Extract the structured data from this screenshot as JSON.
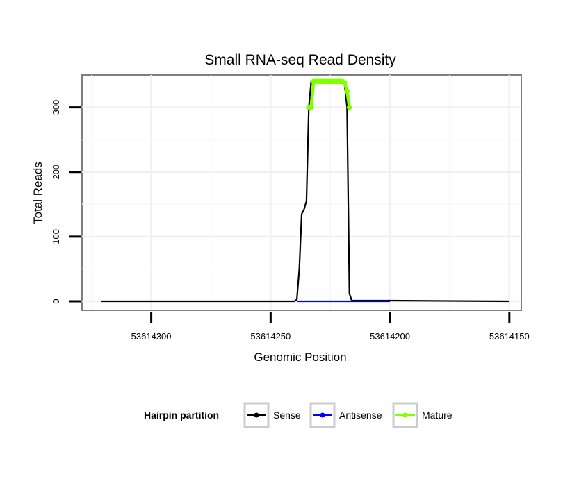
{
  "chart_data": {
    "type": "line",
    "title": "Small RNA-seq Read Density",
    "xlabel": "Genomic Position",
    "ylabel": "Total Reads",
    "xlim": [
      53614329,
      53614145
    ],
    "ylim": [
      -14,
      350
    ],
    "x_reversed": true,
    "x_ticks": [
      53614300,
      53614250,
      53614200,
      53614150
    ],
    "x_tick_labels": [
      "53614300",
      "53614250",
      "53614200",
      "53614150"
    ],
    "y_ticks": [
      0,
      100,
      200,
      300
    ],
    "y_tick_labels": [
      "0",
      "100",
      "200",
      "300"
    ],
    "grid": true,
    "legend": {
      "title": "Hairpin partition",
      "position": "bottom",
      "entries": [
        {
          "name": "Sense",
          "color": "#000000"
        },
        {
          "name": "Antisense",
          "color": "#0000ff"
        },
        {
          "name": "Mature",
          "color": "#7fff00"
        }
      ]
    },
    "series": [
      {
        "name": "Sense",
        "color": "#000000",
        "x": [
          53614321,
          53614240,
          53614239,
          53614238,
          53614237,
          53614236,
          53614235,
          53614234,
          53614233,
          53614232,
          53614231,
          53614230,
          53614220,
          53614219,
          53614218,
          53614217,
          53614216,
          53614215,
          53614200,
          53614150
        ],
        "values": [
          0,
          0,
          3,
          50,
          135,
          142,
          155,
          300,
          340,
          340,
          340,
          340,
          340,
          335,
          300,
          12,
          1,
          1,
          1,
          0
        ]
      },
      {
        "name": "Antisense",
        "color": "#0000ff",
        "x": [
          53614239,
          53614200
        ],
        "values": [
          0,
          0
        ]
      },
      {
        "name": "Mature",
        "color": "#7fff00",
        "x": [
          53614234,
          53614233,
          53614232,
          53614231,
          53614230,
          53614229,
          53614228,
          53614227,
          53614226,
          53614225,
          53614224,
          53614223,
          53614222,
          53614221,
          53614220,
          53614219,
          53614218,
          53614217
        ],
        "values": [
          300,
          300,
          340,
          340,
          340,
          340,
          340,
          340,
          340,
          340,
          340,
          340,
          340,
          340,
          340,
          338,
          325,
          300
        ]
      }
    ]
  }
}
